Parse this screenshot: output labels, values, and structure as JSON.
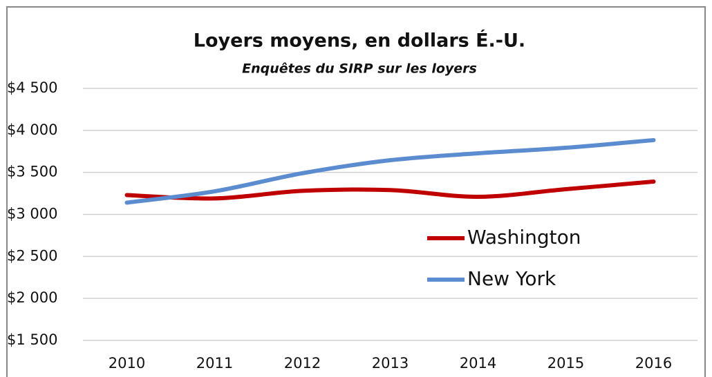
{
  "chart_data": {
    "type": "line",
    "title": "Loyers moyens, en dollars É.-U.",
    "subtitle": "Enquêtes du SIRP sur les loyers",
    "categories": [
      "2010",
      "2011",
      "2012",
      "2013",
      "2014",
      "2015",
      "2016"
    ],
    "series": [
      {
        "name": "Washington",
        "color": "#c00000",
        "values": [
          3230,
          3190,
          3280,
          3290,
          3210,
          3300,
          3390
        ]
      },
      {
        "name": "New York",
        "color": "#5b8ccf",
        "values": [
          3140,
          3275,
          3490,
          3645,
          3727,
          3793,
          3884
        ]
      }
    ],
    "ylim": [
      1500,
      4500
    ],
    "yticks": [
      {
        "value": 1500,
        "label": "$1 500"
      },
      {
        "value": 2000,
        "label": "$2 000"
      },
      {
        "value": 2500,
        "label": "$2 500"
      },
      {
        "value": 3000,
        "label": "$3 000"
      },
      {
        "value": 3500,
        "label": "$3 500"
      },
      {
        "value": 4000,
        "label": "$4 000"
      },
      {
        "value": 4500,
        "label": "$4 500"
      }
    ],
    "grid": true,
    "smooth": true
  }
}
